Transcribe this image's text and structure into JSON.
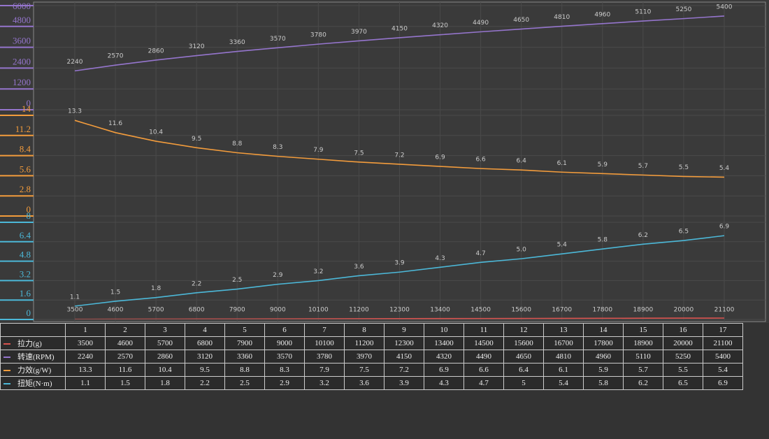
{
  "chart_data": {
    "type": "line",
    "categories": [
      "1",
      "2",
      "3",
      "4",
      "5",
      "6",
      "7",
      "8",
      "9",
      "10",
      "11",
      "12",
      "13",
      "14",
      "15",
      "16",
      "17"
    ],
    "grid": true,
    "series": [
      {
        "name": "拉力(g)",
        "color": "#d9534f",
        "values": [
          3500,
          4600,
          5700,
          6800,
          7900,
          9000,
          10100,
          11200,
          12300,
          13400,
          14500,
          15600,
          16700,
          17800,
          18900,
          20000,
          21100
        ]
      },
      {
        "name": "转速(RPM)",
        "color": "#9575cd",
        "values": [
          2240,
          2570,
          2860,
          3120,
          3360,
          3570,
          3780,
          3970,
          4150,
          4320,
          4490,
          4650,
          4810,
          4960,
          5110,
          5250,
          5400
        ],
        "ylim": [
          0,
          6000
        ],
        "yticks": [
          0,
          1200,
          2400,
          3600,
          4800,
          6000
        ]
      },
      {
        "name": "力效(g/W)",
        "color": "#f39c3c",
        "values": [
          13.3,
          11.6,
          10.4,
          9.5,
          8.8,
          8.3,
          7.9,
          7.5,
          7.2,
          6.9,
          6.6,
          6.4,
          6.1,
          5.9,
          5.7,
          5.5,
          5.4
        ],
        "ylim": [
          0,
          14
        ],
        "yticks": [
          0,
          2.8,
          5.6,
          8.4,
          11.2,
          14
        ]
      },
      {
        "name": "扭矩(N·m)",
        "color": "#4cb8d8",
        "values": [
          1.1,
          1.5,
          1.8,
          2.2,
          2.5,
          2.9,
          3.2,
          3.6,
          3.9,
          4.3,
          4.7,
          5.0,
          5.4,
          5.8,
          6.2,
          6.5,
          6.9
        ],
        "value_labels": [
          "1.1",
          "1.5",
          "1.8",
          "2.2",
          "2.5",
          "2.9",
          "3.2",
          "3.6",
          "3.9",
          "4.3",
          "4.7",
          "5.0",
          "5.4",
          "5.8",
          "6.2",
          "6.5",
          "6.9"
        ],
        "ylim": [
          0,
          8
        ],
        "yticks": [
          0,
          1.6,
          3.2,
          4.8,
          6.4,
          8
        ]
      }
    ]
  }
}
